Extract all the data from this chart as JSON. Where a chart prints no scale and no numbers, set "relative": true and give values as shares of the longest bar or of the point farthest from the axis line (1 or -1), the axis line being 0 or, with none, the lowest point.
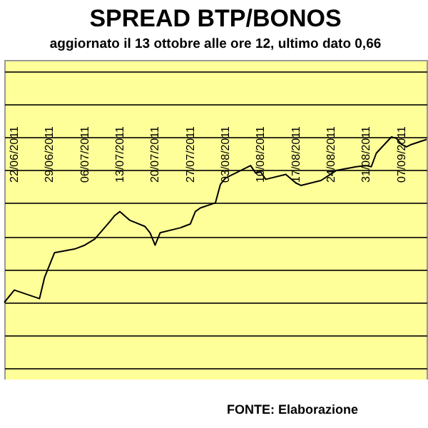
{
  "chart_data": {
    "type": "line",
    "title": "SPREAD BTP/BONOS",
    "subtitle": "aggiornato il 13 ottobre alle ore 12, ultimo dato 0,66",
    "annotations": [
      "FONTE: Elaborazione"
    ],
    "relative": true,
    "grid": "y",
    "line_style": "solid",
    "x": [
      "2011-06-20",
      "2011-06-22",
      "2011-06-27",
      "2011-06-28",
      "2011-06-30",
      "2011-07-04",
      "2011-07-06",
      "2011-07-08",
      "2011-07-11",
      "2011-07-12",
      "2011-07-13",
      "2011-07-15",
      "2011-07-18",
      "2011-07-19",
      "2011-07-20",
      "2011-07-21",
      "2011-07-25",
      "2011-07-27",
      "2011-07-28",
      "2011-07-29",
      "2011-08-01",
      "2011-08-02",
      "2011-08-03",
      "2011-08-08",
      "2011-08-09",
      "2011-08-10",
      "2011-08-11",
      "2011-08-15",
      "2011-08-17",
      "2011-08-18",
      "2011-08-22",
      "2011-08-25",
      "2011-08-29",
      "2011-08-31",
      "2011-09-01",
      "2011-09-02",
      "2011-09-05",
      "2011-09-06",
      "2011-09-07",
      "2011-09-08",
      "2011-09-09",
      "2011-09-12"
    ],
    "series": [
      {
        "color": "#000000",
        "values": [
          0,
          0.075,
          0.023,
          0.15,
          0.301,
          0.323,
          0.346,
          0.383,
          0.489,
          0.526,
          0.549,
          0.496,
          0.459,
          0.421,
          0.346,
          0.421,
          0.451,
          0.474,
          0.549,
          0.571,
          0.602,
          0.714,
          0.752,
          0.827,
          0.782,
          0.789,
          0.744,
          0.774,
          0.722,
          0.707,
          0.737,
          0.797,
          0.82,
          0.827,
          0.82,
          0.902,
          1,
          0.992,
          0.955,
          0.94,
          0.955,
          0.985
        ]
      }
    ],
    "xlim": [
      "2011-06-20",
      "2011-09-12"
    ],
    "xticks": [
      {
        "value": "2011-06-22",
        "label": "22/06/2011"
      },
      {
        "value": "2011-06-29",
        "label": "29/06/2011"
      },
      {
        "value": "2011-07-06",
        "label": "06/07/2011"
      },
      {
        "value": "2011-07-13",
        "label": "13/07/2011"
      },
      {
        "value": "2011-07-20",
        "label": "20/07/2011"
      },
      {
        "value": "2011-07-27",
        "label": "27/07/2011"
      },
      {
        "value": "2011-08-03",
        "label": "03/08/2011"
      },
      {
        "value": "2011-08-10",
        "label": "10/08/2011"
      },
      {
        "value": "2011-08-17",
        "label": "17/08/2011"
      },
      {
        "value": "2011-08-24",
        "label": "24/08/2011"
      },
      {
        "value": "2011-08-31",
        "label": "31/08/2011"
      },
      {
        "value": "2011-09-07",
        "label": "07/09/2011"
      }
    ]
  }
}
